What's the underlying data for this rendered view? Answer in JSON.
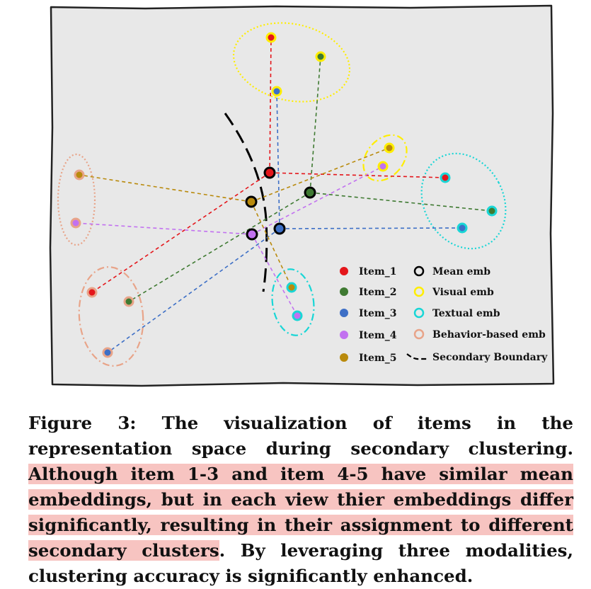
{
  "legend": {
    "items": [
      {
        "label": "Item_1",
        "color": "#e4161b"
      },
      {
        "label": "Item_2",
        "color": "#3f7a32"
      },
      {
        "label": "Item_3",
        "color": "#3d6fc6"
      },
      {
        "label": "Item_4",
        "color": "#c271f0"
      },
      {
        "label": "Item_5",
        "color": "#b98a0c"
      }
    ],
    "views": [
      {
        "label": "Mean emb",
        "color": "#000000"
      },
      {
        "label": "Visual emb",
        "color": "#ffee00"
      },
      {
        "label": "Textual emb",
        "color": "#19d6d6"
      },
      {
        "label": "Behavior-based emb",
        "color": "#e8a489"
      }
    ],
    "boundary": "Secondary Boundary"
  },
  "colors": {
    "background": "#e8e8e8",
    "boundary": "#000000"
  },
  "caption": {
    "lead": "Figure 3: The visualization of items in the representation space during secondary clustering. ",
    "highlight": "Although item 1-3 and item 4-5 have similar mean embeddings, but in each view thier embeddings differ significantly, resulting in their assignment to different secondary clusters",
    "tail": ". By leveraging three modalities, clustering accuracy is significantly enhanced."
  }
}
